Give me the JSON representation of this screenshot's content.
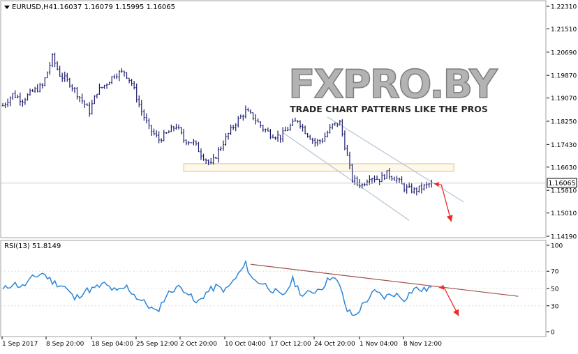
{
  "window": {
    "title": "EURUSD,H4",
    "ohlc": "1.16037 1.16079 1.15995 1.16065",
    "current_price": "1.16065"
  },
  "watermark": {
    "brand": "FXPRO.BY",
    "tagline": "TRADE CHART PATTERNS LIKE THE PROS"
  },
  "chart_data": [
    {
      "type": "candlestick",
      "title": "EURUSD,H4",
      "ylim": [
        1.1419,
        1.2231
      ],
      "y_ticks": [
        "1.22310",
        "1.21510",
        "1.20690",
        "1.19870",
        "1.19070",
        "1.18250",
        "1.17430",
        "1.16630",
        "1.15810",
        "1.15010",
        "1.14190"
      ],
      "x_tick_labels": [
        "1 Sep 2017",
        "8 Sep 20:00",
        "18 Sep 04:00",
        "25 Sep 12:00",
        "2 Oct 20:00",
        "10 Oct 04:00",
        "17 Oct 12:00",
        "24 Oct 20:00",
        "1 Nov 04:00",
        "8 Nov 12:00"
      ],
      "price_path": [
        [
          0,
          1.188
        ],
        [
          4,
          1.192
        ],
        [
          8,
          1.19
        ],
        [
          12,
          1.193
        ],
        [
          16,
          1.195
        ],
        [
          20,
          1.205
        ],
        [
          23,
          1.199
        ],
        [
          27,
          1.196
        ],
        [
          31,
          1.191
        ],
        [
          35,
          1.186
        ],
        [
          38,
          1.193
        ],
        [
          42,
          1.196
        ],
        [
          45,
          1.199
        ],
        [
          49,
          1.2
        ],
        [
          52,
          1.196
        ],
        [
          56,
          1.186
        ],
        [
          59,
          1.18
        ],
        [
          63,
          1.176
        ],
        [
          66,
          1.178
        ],
        [
          70,
          1.181
        ],
        [
          73,
          1.176
        ],
        [
          77,
          1.175
        ],
        [
          80,
          1.171
        ],
        [
          84,
          1.167
        ],
        [
          87,
          1.172
        ],
        [
          91,
          1.178
        ],
        [
          94,
          1.182
        ],
        [
          98,
          1.186
        ],
        [
          101,
          1.184
        ],
        [
          105,
          1.18
        ],
        [
          108,
          1.178
        ],
        [
          112,
          1.177
        ],
        [
          115,
          1.18
        ],
        [
          119,
          1.183
        ],
        [
          122,
          1.179
        ],
        [
          126,
          1.175
        ],
        [
          129,
          1.176
        ],
        [
          133,
          1.181
        ],
        [
          136,
          1.182
        ],
        [
          138,
          1.174
        ],
        [
          141,
          1.162
        ],
        [
          145,
          1.16
        ],
        [
          148,
          1.163
        ],
        [
          152,
          1.162
        ],
        [
          155,
          1.164
        ],
        [
          159,
          1.162
        ],
        [
          162,
          1.159
        ],
        [
          166,
          1.158
        ],
        [
          169,
          1.159
        ],
        [
          173,
          1.1607
        ]
      ],
      "support_zone": [
        1.1648,
        1.1675
      ],
      "channel_upper": [
        [
          131,
          1.184
        ],
        [
          186,
          1.154
        ]
      ],
      "channel_lower": [
        [
          113,
          1.1785
        ],
        [
          164,
          1.1475
        ]
      ],
      "forecast_arrow": [
        [
          174,
          1.1605
        ],
        [
          177,
          1.16
        ],
        [
          181,
          1.147
        ]
      ],
      "last_price": 1.16065
    },
    {
      "type": "line",
      "title": "RSI(13) 51.8149",
      "ylim": [
        0,
        100
      ],
      "y_ticks": [
        "100",
        "70",
        "50",
        "30",
        "0"
      ],
      "series": [
        {
          "name": "RSI(13)",
          "color": "#2c86d6",
          "points": [
            [
              0,
              48
            ],
            [
              4,
              56
            ],
            [
              8,
              52
            ],
            [
              12,
              62
            ],
            [
              16,
              68
            ],
            [
              20,
              58
            ],
            [
              25,
              52
            ],
            [
              29,
              38
            ],
            [
              33,
              47
            ],
            [
              37,
              50
            ],
            [
              41,
              55
            ],
            [
              46,
              46
            ],
            [
              50,
              52
            ],
            [
              54,
              40
            ],
            [
              58,
              32
            ],
            [
              62,
              22
            ],
            [
              66,
              42
            ],
            [
              70,
              52
            ],
            [
              74,
              48
            ],
            [
              78,
              32
            ],
            [
              82,
              45
            ],
            [
              86,
              52
            ],
            [
              90,
              48
            ],
            [
              94,
              62
            ],
            [
              98,
              78
            ],
            [
              101,
              60
            ],
            [
              105,
              56
            ],
            [
              109,
              48
            ],
            [
              113,
              40
            ],
            [
              117,
              60
            ],
            [
              121,
              42
            ],
            [
              125,
              46
            ],
            [
              129,
              52
            ],
            [
              133,
              66
            ],
            [
              136,
              52
            ],
            [
              139,
              24
            ],
            [
              142,
              18
            ],
            [
              146,
              34
            ],
            [
              150,
              46
            ],
            [
              154,
              40
            ],
            [
              158,
              44
            ],
            [
              162,
              38
            ],
            [
              166,
              50
            ],
            [
              170,
              48
            ],
            [
              173,
              51.8
            ]
          ]
        }
      ],
      "trendline": [
        [
          100,
          78
        ],
        [
          208,
          41
        ]
      ],
      "forecast_arrow": [
        [
          176,
          51
        ],
        [
          178,
          51.4
        ],
        [
          184,
          18
        ]
      ],
      "reference_lines": [
        70,
        50,
        30
      ]
    }
  ],
  "colors": {
    "candle": "#1c1c6e",
    "rsi_line": "#2c86d6",
    "trendline": "#a0504c",
    "forecast": "#ee2a2a",
    "channel": "#b4c4d4",
    "zone_border": "#e6c466",
    "grid": "#a0a0a0"
  }
}
